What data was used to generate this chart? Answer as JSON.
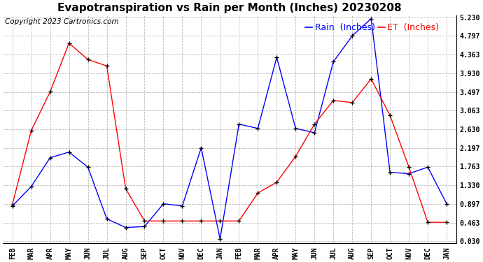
{
  "title": "Evapotranspiration vs Rain per Month (Inches) 20230208",
  "copyright": "Copyright 2023 Cartronics.com",
  "legend_rain": "Rain  (Inches)",
  "legend_et": "ET  (Inches)",
  "x_labels": [
    "FEB",
    "MAR",
    "APR",
    "MAY",
    "JUN",
    "JUL",
    "AUG",
    "SEP",
    "OCT",
    "NOV",
    "DEC",
    "JAN",
    "FEB",
    "MAR",
    "APR",
    "MAY",
    "JUN",
    "JUL",
    "AUG",
    "SEP",
    "OCT",
    "NOV",
    "DEC",
    "JAN"
  ],
  "rain_data": [
    0.85,
    1.3,
    1.97,
    2.1,
    1.75,
    0.55,
    0.35,
    0.37,
    0.9,
    0.85,
    2.2,
    0.08,
    2.75,
    2.65,
    4.3,
    2.65,
    2.55,
    4.2,
    4.8,
    5.2,
    1.63,
    1.6,
    1.75,
    0.9
  ],
  "et_data": [
    0.88,
    2.6,
    3.5,
    4.63,
    4.25,
    4.1,
    1.25,
    0.5,
    0.5,
    0.5,
    0.5,
    0.5,
    0.5,
    1.15,
    1.4,
    2.0,
    2.75,
    3.3,
    3.25,
    3.8,
    2.95,
    1.75,
    0.47,
    0.47
  ],
  "y_ticks": [
    0.03,
    0.463,
    0.897,
    1.33,
    1.763,
    2.197,
    2.63,
    3.063,
    3.497,
    3.93,
    4.363,
    4.797,
    5.23
  ],
  "rain_color": "#0000ff",
  "et_color": "#ff0000",
  "marker_color": "#000000",
  "title_fontsize": 11,
  "copyright_fontsize": 7.5,
  "legend_fontsize": 9,
  "background_color": "#ffffff",
  "grid_color": "#bbbbbb",
  "y_min": 0.03,
  "y_max": 5.23,
  "fig_width": 6.9,
  "fig_height": 3.75,
  "dpi": 100
}
